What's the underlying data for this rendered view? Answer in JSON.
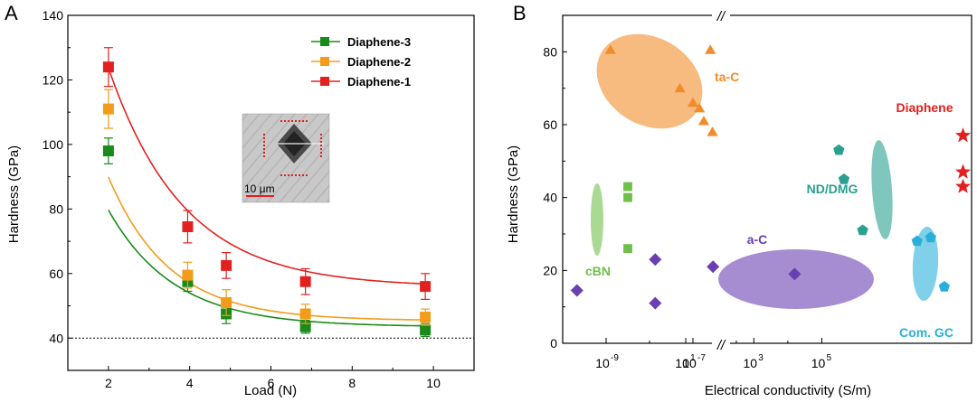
{
  "chart_data": [
    {
      "type": "line",
      "panel": "A",
      "xlabel": "Load (N)",
      "ylabel": "Hardness (GPa)",
      "xlim": [
        1,
        11
      ],
      "ylim": [
        30,
        140
      ],
      "xticks": [
        2,
        4,
        6,
        8,
        10
      ],
      "yticks": [
        40,
        60,
        80,
        100,
        120,
        140
      ],
      "reference_line": 40,
      "legend_position": "top-right",
      "x": [
        2.0,
        3.95,
        4.9,
        6.85,
        9.8
      ],
      "series": [
        {
          "name": "Diaphene-3",
          "color": "#1a8a1a",
          "values": [
            98,
            57.5,
            47.5,
            43.5,
            42.5
          ],
          "errors": [
            4,
            3,
            3,
            2,
            2
          ],
          "fit": {
            "a": 43.5,
            "b": 125,
            "k": 0.62
          }
        },
        {
          "name": "Diaphene-2",
          "color": "#f39c1a",
          "values": [
            111,
            59.5,
            51,
            47.5,
            46.5
          ],
          "errors": [
            6,
            4,
            4,
            3,
            2.5
          ],
          "fit": {
            "a": 45.4,
            "b": 170,
            "k": 0.67
          }
        },
        {
          "name": "Diaphene-1",
          "color": "#e32020",
          "values": [
            124,
            74.5,
            62.5,
            57.5,
            56
          ],
          "errors": [
            6,
            5,
            4,
            4,
            4
          ],
          "fit": {
            "a": 55.8,
            "b": 200,
            "k": 0.54
          }
        }
      ],
      "inset": {
        "scale_label": "10 μm"
      }
    },
    {
      "type": "scatter",
      "panel": "B",
      "xlabel": "Electrical conductivity (S/m)",
      "ylabel": "Hardness (GPa)",
      "x_scale": "log, broken axis",
      "ylim": [
        0,
        90
      ],
      "yticks": [
        0,
        20,
        40,
        60,
        80
      ],
      "xticks": [
        {
          "base": "10",
          "exp": "-9"
        },
        {
          "base": "10",
          "exp": "-7"
        },
        {
          "base": "10",
          "exp": "1"
        },
        {
          "base": "10",
          "exp": "3"
        },
        {
          "base": "10",
          "exp": "5"
        }
      ],
      "groups": [
        {
          "name": "ta-C",
          "color": "#f28c2a",
          "marker": "triangle",
          "points": [
            [
              -8.9,
              80.5
            ],
            [
              -6.6,
              80.5
            ],
            [
              -7.3,
              70
            ],
            [
              -7.0,
              66
            ],
            [
              -6.85,
              64.5
            ],
            [
              -6.75,
              61
            ],
            [
              -6.55,
              58
            ]
          ]
        },
        {
          "name": "cBN",
          "color": "#6fbf4b",
          "marker": "square",
          "points": [
            [
              -8.5,
              43
            ],
            [
              -8.5,
              40
            ],
            [
              -8.5,
              26
            ]
          ]
        },
        {
          "name": "a-C",
          "color": "#6a3fb0",
          "marker": "diamond",
          "points": [
            [
              -2.2,
              14.5
            ],
            [
              0.1,
              23
            ],
            [
              0.1,
              11
            ],
            [
              1.8,
              21
            ],
            [
              4.2,
              19
            ]
          ]
        },
        {
          "name": "ND/DMG",
          "color": "#2aa090",
          "marker": "pentagon",
          "points": [
            [
              5.5,
              53
            ],
            [
              5.65,
              45
            ],
            [
              6.2,
              31
            ]
          ]
        },
        {
          "name": "Com. GC",
          "color": "#2ab0d8",
          "marker": "pentagon",
          "points": [
            [
              7.8,
              28
            ],
            [
              8.2,
              29
            ],
            [
              8.6,
              15.5
            ]
          ]
        },
        {
          "name": "Diaphene",
          "color": "#e32020",
          "marker": "star",
          "points": [
            [
              9.15,
              57
            ],
            [
              9.15,
              47
            ],
            [
              9.15,
              43
            ]
          ]
        }
      ]
    }
  ],
  "panel_a_letter": "A",
  "panel_b_letter": "B",
  "break_mark": "//"
}
